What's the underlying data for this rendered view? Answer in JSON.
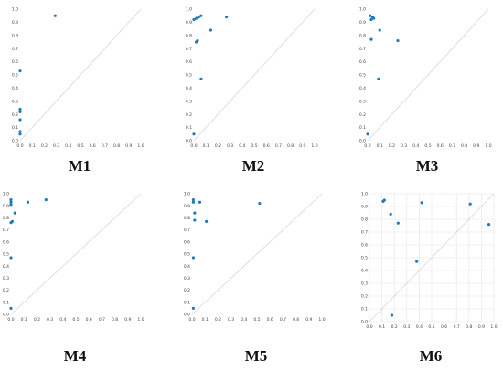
{
  "colors": {
    "point": "#1f7bbf",
    "grid": "#e4e4e4",
    "diagonal": "#d6d6d6",
    "axis_text": "#444444"
  },
  "chart_data": [
    {
      "type": "scatter",
      "title": "M1",
      "xlim": [
        0,
        1
      ],
      "ylim": [
        0,
        1
      ],
      "ticks": [
        "0.0",
        "0.1",
        "0.2",
        "0.3",
        "0.4",
        "0.5",
        "0.6",
        "0.7",
        "0.8",
        "0.9",
        "1.0"
      ],
      "grid": false,
      "diagonal": true,
      "points": [
        [
          0.29,
          0.95
        ],
        [
          0.0,
          0.53
        ],
        [
          0.0,
          0.24
        ],
        [
          0.0,
          0.22
        ],
        [
          0.0,
          0.16
        ],
        [
          0.0,
          0.07
        ],
        [
          0.0,
          0.05
        ]
      ]
    },
    {
      "type": "scatter",
      "title": "M2",
      "xlim": [
        0,
        1
      ],
      "ylim": [
        0,
        1
      ],
      "ticks": [
        "0.0",
        "0.1",
        "0.2",
        "0.3",
        "0.4",
        "0.5",
        "0.6",
        "0.7",
        "0.8",
        "0.9",
        "1.0"
      ],
      "grid": false,
      "diagonal": true,
      "points": [
        [
          0.0,
          0.92
        ],
        [
          0.02,
          0.93
        ],
        [
          0.04,
          0.94
        ],
        [
          0.06,
          0.95
        ],
        [
          0.27,
          0.94
        ],
        [
          0.14,
          0.84
        ],
        [
          0.03,
          0.76
        ],
        [
          0.02,
          0.75
        ],
        [
          0.06,
          0.47
        ],
        [
          0.0,
          0.05
        ]
      ]
    },
    {
      "type": "scatter",
      "title": "M3",
      "xlim": [
        0,
        1
      ],
      "ylim": [
        0,
        1
      ],
      "ticks": [
        "0.0",
        "0.1",
        "0.2",
        "0.3",
        "0.4",
        "0.5",
        "0.6",
        "0.7",
        "0.8",
        "0.9",
        "1.0"
      ],
      "grid": false,
      "diagonal": true,
      "points": [
        [
          0.02,
          0.95
        ],
        [
          0.03,
          0.92
        ],
        [
          0.04,
          0.94
        ],
        [
          0.05,
          0.93
        ],
        [
          0.1,
          0.84
        ],
        [
          0.03,
          0.77
        ],
        [
          0.25,
          0.76
        ],
        [
          0.09,
          0.47
        ],
        [
          0.0,
          0.05
        ]
      ]
    },
    {
      "type": "scatter",
      "title": "M4",
      "xlim": [
        0,
        1
      ],
      "ylim": [
        0,
        1
      ],
      "ticks": [
        "0.0",
        "0.1",
        "0.2",
        "0.3",
        "0.4",
        "0.5",
        "0.6",
        "0.7",
        "0.8",
        "0.9",
        "1.0"
      ],
      "grid": false,
      "diagonal": true,
      "points": [
        [
          0.0,
          0.95
        ],
        [
          0.0,
          0.93
        ],
        [
          0.0,
          0.91
        ],
        [
          0.13,
          0.93
        ],
        [
          0.27,
          0.95
        ],
        [
          0.03,
          0.84
        ],
        [
          0.01,
          0.77
        ],
        [
          0.0,
          0.76
        ],
        [
          0.0,
          0.47
        ],
        [
          0.0,
          0.05
        ]
      ]
    },
    {
      "type": "scatter",
      "title": "M5",
      "xlim": [
        0,
        1
      ],
      "ylim": [
        0,
        1
      ],
      "ticks": [
        "0.0",
        "0.1",
        "0.2",
        "0.3",
        "0.4",
        "0.5",
        "0.6",
        "0.7",
        "0.8",
        "0.9",
        "1.0"
      ],
      "grid": false,
      "diagonal": true,
      "points": [
        [
          0.01,
          0.95
        ],
        [
          0.01,
          0.93
        ],
        [
          0.06,
          0.93
        ],
        [
          0.52,
          0.92
        ],
        [
          0.02,
          0.84
        ],
        [
          0.02,
          0.78
        ],
        [
          0.11,
          0.77
        ],
        [
          0.01,
          0.47
        ],
        [
          0.01,
          0.05
        ]
      ]
    },
    {
      "type": "scatter",
      "title": "M6",
      "xlim": [
        0,
        1
      ],
      "ylim": [
        0,
        1
      ],
      "ticks": [
        "0.0",
        "0.1",
        "0.2",
        "0.3",
        "0.4",
        "0.5",
        "0.6",
        "0.7",
        "0.8",
        "0.9",
        "1.0"
      ],
      "grid": true,
      "diagonal": true,
      "points": [
        [
          0.11,
          0.94
        ],
        [
          0.12,
          0.95
        ],
        [
          0.42,
          0.93
        ],
        [
          0.81,
          0.92
        ],
        [
          0.17,
          0.84
        ],
        [
          0.23,
          0.77
        ],
        [
          0.96,
          0.76
        ],
        [
          0.38,
          0.47
        ],
        [
          0.18,
          0.05
        ]
      ]
    }
  ]
}
